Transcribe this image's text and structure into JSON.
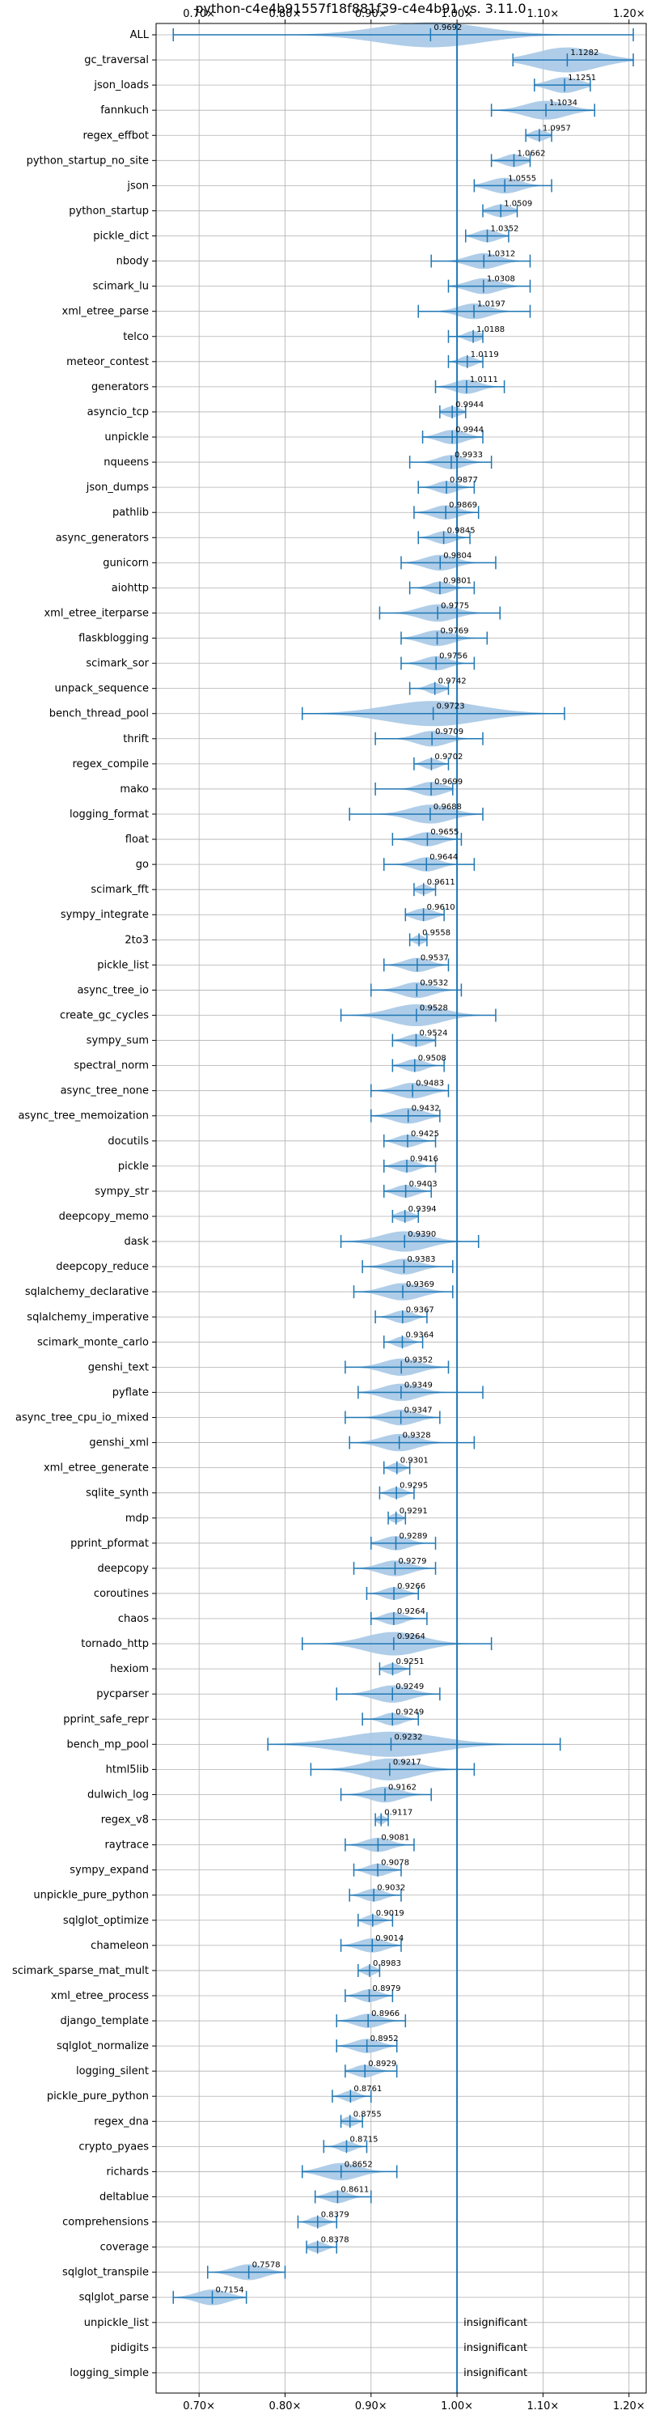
{
  "chart_data": {
    "type": "violin",
    "title": "python-c4e4b91557f18f881f39-c4e4b91 vs. 3.11.0",
    "xlabel": "",
    "ylabel": "",
    "xlim": [
      0.65,
      1.22
    ],
    "x_ticks": [
      0.7,
      0.8,
      0.9,
      1.0,
      1.1,
      1.2
    ],
    "x_tick_labels": [
      "0.70×",
      "0.80×",
      "0.90×",
      "1.00×",
      "1.10×",
      "1.20×"
    ],
    "reference_line": 1.0,
    "grid": true,
    "series_color": "#1f77b4",
    "violin_fill": "#a6c8e6",
    "insignificant_label": "insignificant",
    "benchmarks": [
      {
        "name": "ALL",
        "value": 0.9692,
        "label": "0.9692",
        "min": 0.67,
        "max": 1.205,
        "spread": 0.1
      },
      {
        "name": "gc_traversal",
        "value": 1.1282,
        "label": "1.1282",
        "min": 1.065,
        "max": 1.205,
        "spread": 0.06
      },
      {
        "name": "json_loads",
        "value": 1.1251,
        "label": "1.1251",
        "min": 1.09,
        "max": 1.155,
        "spread": 0.03
      },
      {
        "name": "fannkuch",
        "value": 1.1034,
        "label": "1.1034",
        "min": 1.04,
        "max": 1.16,
        "spread": 0.04
      },
      {
        "name": "regex_effbot",
        "value": 1.0957,
        "label": "1.0957",
        "min": 1.08,
        "max": 1.11,
        "spread": 0.015
      },
      {
        "name": "python_startup_no_site",
        "value": 1.0662,
        "label": "1.0662",
        "min": 1.04,
        "max": 1.085,
        "spread": 0.02
      },
      {
        "name": "json",
        "value": 1.0555,
        "label": "1.0555",
        "min": 1.02,
        "max": 1.11,
        "spread": 0.03
      },
      {
        "name": "python_startup",
        "value": 1.0509,
        "label": "1.0509",
        "min": 1.03,
        "max": 1.07,
        "spread": 0.02
      },
      {
        "name": "pickle_dict",
        "value": 1.0352,
        "label": "1.0352",
        "min": 1.01,
        "max": 1.06,
        "spread": 0.02
      },
      {
        "name": "nbody",
        "value": 1.0312,
        "label": "1.0312",
        "min": 0.97,
        "max": 1.085,
        "spread": 0.03
      },
      {
        "name": "scimark_lu",
        "value": 1.0308,
        "label": "1.0308",
        "min": 0.99,
        "max": 1.085,
        "spread": 0.03
      },
      {
        "name": "xml_etree_parse",
        "value": 1.0197,
        "label": "1.0197",
        "min": 0.955,
        "max": 1.085,
        "spread": 0.03
      },
      {
        "name": "telco",
        "value": 1.0188,
        "label": "1.0188",
        "min": 0.99,
        "max": 1.03,
        "spread": 0.015
      },
      {
        "name": "meteor_contest",
        "value": 1.0119,
        "label": "1.0119",
        "min": 0.99,
        "max": 1.03,
        "spread": 0.015
      },
      {
        "name": "generators",
        "value": 1.0111,
        "label": "1.0111",
        "min": 0.975,
        "max": 1.055,
        "spread": 0.025
      },
      {
        "name": "asyncio_tcp",
        "value": 0.9944,
        "label": "0.9944",
        "min": 0.98,
        "max": 1.01,
        "spread": 0.015
      },
      {
        "name": "unpickle",
        "value": 0.9944,
        "label": "0.9944",
        "min": 0.96,
        "max": 1.03,
        "spread": 0.025
      },
      {
        "name": "nqueens",
        "value": 0.9933,
        "label": "0.9933",
        "min": 0.945,
        "max": 1.04,
        "spread": 0.025
      },
      {
        "name": "json_dumps",
        "value": 0.9877,
        "label": "0.9877",
        "min": 0.955,
        "max": 1.02,
        "spread": 0.02
      },
      {
        "name": "pathlib",
        "value": 0.9869,
        "label": "0.9869",
        "min": 0.95,
        "max": 1.025,
        "spread": 0.025
      },
      {
        "name": "async_generators",
        "value": 0.9845,
        "label": "0.9845",
        "min": 0.955,
        "max": 1.015,
        "spread": 0.02
      },
      {
        "name": "gunicorn",
        "value": 0.9804,
        "label": "0.9804",
        "min": 0.935,
        "max": 1.045,
        "spread": 0.03
      },
      {
        "name": "aiohttp",
        "value": 0.9801,
        "label": "0.9801",
        "min": 0.945,
        "max": 1.02,
        "spread": 0.02
      },
      {
        "name": "xml_etree_iterparse",
        "value": 0.9775,
        "label": "0.9775",
        "min": 0.91,
        "max": 1.05,
        "spread": 0.035
      },
      {
        "name": "flaskblogging",
        "value": 0.9769,
        "label": "0.9769",
        "min": 0.935,
        "max": 1.035,
        "spread": 0.03
      },
      {
        "name": "scimark_sor",
        "value": 0.9756,
        "label": "0.9756",
        "min": 0.935,
        "max": 1.02,
        "spread": 0.025
      },
      {
        "name": "unpack_sequence",
        "value": 0.9742,
        "label": "0.9742",
        "min": 0.945,
        "max": 0.99,
        "spread": 0.015
      },
      {
        "name": "bench_thread_pool",
        "value": 0.9723,
        "label": "0.9723",
        "min": 0.82,
        "max": 1.125,
        "spread": 0.09
      },
      {
        "name": "thrift",
        "value": 0.9709,
        "label": "0.9709",
        "min": 0.905,
        "max": 1.03,
        "spread": 0.03
      },
      {
        "name": "regex_compile",
        "value": 0.9702,
        "label": "0.9702",
        "min": 0.95,
        "max": 0.99,
        "spread": 0.015
      },
      {
        "name": "mako",
        "value": 0.9699,
        "label": "0.9699",
        "min": 0.905,
        "max": 0.995,
        "spread": 0.025
      },
      {
        "name": "logging_format",
        "value": 0.9688,
        "label": "0.9688",
        "min": 0.875,
        "max": 1.03,
        "spread": 0.04
      },
      {
        "name": "float",
        "value": 0.9655,
        "label": "0.9655",
        "min": 0.925,
        "max": 1.005,
        "spread": 0.025
      },
      {
        "name": "go",
        "value": 0.9644,
        "label": "0.9644",
        "min": 0.915,
        "max": 1.02,
        "spread": 0.025
      },
      {
        "name": "scimark_fft",
        "value": 0.9611,
        "label": "0.9611",
        "min": 0.95,
        "max": 0.975,
        "spread": 0.012
      },
      {
        "name": "sympy_integrate",
        "value": 0.961,
        "label": "0.9610",
        "min": 0.94,
        "max": 0.985,
        "spread": 0.02
      },
      {
        "name": "2to3",
        "value": 0.9558,
        "label": "0.9558",
        "min": 0.945,
        "max": 0.965,
        "spread": 0.01
      },
      {
        "name": "pickle_list",
        "value": 0.9537,
        "label": "0.9537",
        "min": 0.915,
        "max": 0.99,
        "spread": 0.025
      },
      {
        "name": "async_tree_io",
        "value": 0.9532,
        "label": "0.9532",
        "min": 0.9,
        "max": 1.005,
        "spread": 0.03
      },
      {
        "name": "create_gc_cycles",
        "value": 0.9528,
        "label": "0.9528",
        "min": 0.865,
        "max": 1.045,
        "spread": 0.05
      },
      {
        "name": "sympy_sum",
        "value": 0.9524,
        "label": "0.9524",
        "min": 0.925,
        "max": 0.975,
        "spread": 0.02
      },
      {
        "name": "spectral_norm",
        "value": 0.9508,
        "label": "0.9508",
        "min": 0.925,
        "max": 0.985,
        "spread": 0.02
      },
      {
        "name": "async_tree_none",
        "value": 0.9483,
        "label": "0.9483",
        "min": 0.9,
        "max": 0.99,
        "spread": 0.03
      },
      {
        "name": "async_tree_memoization",
        "value": 0.9432,
        "label": "0.9432",
        "min": 0.9,
        "max": 0.98,
        "spread": 0.03
      },
      {
        "name": "docutils",
        "value": 0.9425,
        "label": "0.9425",
        "min": 0.915,
        "max": 0.975,
        "spread": 0.02
      },
      {
        "name": "pickle",
        "value": 0.9416,
        "label": "0.9416",
        "min": 0.915,
        "max": 0.975,
        "spread": 0.02
      },
      {
        "name": "sympy_str",
        "value": 0.9403,
        "label": "0.9403",
        "min": 0.915,
        "max": 0.97,
        "spread": 0.02
      },
      {
        "name": "deepcopy_memo",
        "value": 0.9394,
        "label": "0.9394",
        "min": 0.925,
        "max": 0.955,
        "spread": 0.015
      },
      {
        "name": "dask",
        "value": 0.939,
        "label": "0.9390",
        "min": 0.865,
        "max": 1.025,
        "spread": 0.045
      },
      {
        "name": "deepcopy_reduce",
        "value": 0.9383,
        "label": "0.9383",
        "min": 0.89,
        "max": 0.995,
        "spread": 0.03
      },
      {
        "name": "sqlalchemy_declarative",
        "value": 0.9369,
        "label": "0.9369",
        "min": 0.88,
        "max": 0.995,
        "spread": 0.035
      },
      {
        "name": "sqlalchemy_imperative",
        "value": 0.9367,
        "label": "0.9367",
        "min": 0.905,
        "max": 0.965,
        "spread": 0.02
      },
      {
        "name": "scimark_monte_carlo",
        "value": 0.9364,
        "label": "0.9364",
        "min": 0.915,
        "max": 0.96,
        "spread": 0.015
      },
      {
        "name": "genshi_text",
        "value": 0.9352,
        "label": "0.9352",
        "min": 0.87,
        "max": 0.99,
        "spread": 0.035
      },
      {
        "name": "pyflate",
        "value": 0.9349,
        "label": "0.9349",
        "min": 0.885,
        "max": 1.03,
        "spread": 0.035
      },
      {
        "name": "async_tree_cpu_io_mixed",
        "value": 0.9347,
        "label": "0.9347",
        "min": 0.87,
        "max": 0.98,
        "spread": 0.03
      },
      {
        "name": "genshi_xml",
        "value": 0.9328,
        "label": "0.9328",
        "min": 0.875,
        "max": 1.02,
        "spread": 0.035
      },
      {
        "name": "xml_etree_generate",
        "value": 0.9301,
        "label": "0.9301",
        "min": 0.915,
        "max": 0.945,
        "spread": 0.012
      },
      {
        "name": "sqlite_synth",
        "value": 0.9295,
        "label": "0.9295",
        "min": 0.91,
        "max": 0.95,
        "spread": 0.015
      },
      {
        "name": "mdp",
        "value": 0.9291,
        "label": "0.9291",
        "min": 0.92,
        "max": 0.94,
        "spread": 0.01
      },
      {
        "name": "pprint_pformat",
        "value": 0.9289,
        "label": "0.9289",
        "min": 0.9,
        "max": 0.975,
        "spread": 0.025
      },
      {
        "name": "deepcopy",
        "value": 0.9279,
        "label": "0.9279",
        "min": 0.88,
        "max": 0.975,
        "spread": 0.03
      },
      {
        "name": "coroutines",
        "value": 0.9266,
        "label": "0.9266",
        "min": 0.895,
        "max": 0.955,
        "spread": 0.02
      },
      {
        "name": "chaos",
        "value": 0.9264,
        "label": "0.9264",
        "min": 0.9,
        "max": 0.965,
        "spread": 0.02
      },
      {
        "name": "tornado_http",
        "value": 0.9264,
        "label": "0.9264",
        "min": 0.82,
        "max": 1.04,
        "spread": 0.055
      },
      {
        "name": "hexiom",
        "value": 0.9251,
        "label": "0.9251",
        "min": 0.91,
        "max": 0.945,
        "spread": 0.015
      },
      {
        "name": "pycparser",
        "value": 0.9249,
        "label": "0.9249",
        "min": 0.86,
        "max": 0.98,
        "spread": 0.035
      },
      {
        "name": "pprint_safe_repr",
        "value": 0.9249,
        "label": "0.9249",
        "min": 0.89,
        "max": 0.955,
        "spread": 0.02
      },
      {
        "name": "bench_mp_pool",
        "value": 0.9232,
        "label": "0.9232",
        "min": 0.78,
        "max": 1.12,
        "spread": 0.09
      },
      {
        "name": "html5lib",
        "value": 0.9217,
        "label": "0.9217",
        "min": 0.83,
        "max": 1.02,
        "spread": 0.05
      },
      {
        "name": "dulwich_log",
        "value": 0.9162,
        "label": "0.9162",
        "min": 0.865,
        "max": 0.97,
        "spread": 0.03
      },
      {
        "name": "regex_v8",
        "value": 0.9117,
        "label": "0.9117",
        "min": 0.905,
        "max": 0.92,
        "spread": 0.008
      },
      {
        "name": "raytrace",
        "value": 0.9081,
        "label": "0.9081",
        "min": 0.87,
        "max": 0.95,
        "spread": 0.025
      },
      {
        "name": "sympy_expand",
        "value": 0.9078,
        "label": "0.9078",
        "min": 0.88,
        "max": 0.935,
        "spread": 0.02
      },
      {
        "name": "unpickle_pure_python",
        "value": 0.9032,
        "label": "0.9032",
        "min": 0.875,
        "max": 0.935,
        "spread": 0.02
      },
      {
        "name": "sqlglot_optimize",
        "value": 0.9019,
        "label": "0.9019",
        "min": 0.885,
        "max": 0.925,
        "spread": 0.015
      },
      {
        "name": "chameleon",
        "value": 0.9014,
        "label": "0.9014",
        "min": 0.865,
        "max": 0.935,
        "spread": 0.025
      },
      {
        "name": "scimark_sparse_mat_mult",
        "value": 0.8983,
        "label": "0.8983",
        "min": 0.885,
        "max": 0.91,
        "spread": 0.012
      },
      {
        "name": "xml_etree_process",
        "value": 0.8979,
        "label": "0.8979",
        "min": 0.87,
        "max": 0.925,
        "spread": 0.02
      },
      {
        "name": "django_template",
        "value": 0.8966,
        "label": "0.8966",
        "min": 0.86,
        "max": 0.94,
        "spread": 0.025
      },
      {
        "name": "sqlglot_normalize",
        "value": 0.8952,
        "label": "0.8952",
        "min": 0.86,
        "max": 0.93,
        "spread": 0.025
      },
      {
        "name": "logging_silent",
        "value": 0.8929,
        "label": "0.8929",
        "min": 0.87,
        "max": 0.93,
        "spread": 0.02
      },
      {
        "name": "pickle_pure_python",
        "value": 0.8761,
        "label": "0.8761",
        "min": 0.855,
        "max": 0.9,
        "spread": 0.015
      },
      {
        "name": "regex_dna",
        "value": 0.8755,
        "label": "0.8755",
        "min": 0.865,
        "max": 0.89,
        "spread": 0.012
      },
      {
        "name": "crypto_pyaes",
        "value": 0.8715,
        "label": "0.8715",
        "min": 0.845,
        "max": 0.895,
        "spread": 0.015
      },
      {
        "name": "richards",
        "value": 0.8652,
        "label": "0.8652",
        "min": 0.82,
        "max": 0.93,
        "spread": 0.035
      },
      {
        "name": "deltablue",
        "value": 0.8611,
        "label": "0.8611",
        "min": 0.835,
        "max": 0.9,
        "spread": 0.02
      },
      {
        "name": "comprehensions",
        "value": 0.8379,
        "label": "0.8379",
        "min": 0.815,
        "max": 0.86,
        "spread": 0.015
      },
      {
        "name": "coverage",
        "value": 0.8378,
        "label": "0.8378",
        "min": 0.825,
        "max": 0.86,
        "spread": 0.015
      },
      {
        "name": "sqlglot_transpile",
        "value": 0.7578,
        "label": "0.7578",
        "min": 0.71,
        "max": 0.8,
        "spread": 0.03
      },
      {
        "name": "sqlglot_parse",
        "value": 0.7154,
        "label": "0.7154",
        "min": 0.67,
        "max": 0.755,
        "spread": 0.03
      },
      {
        "name": "unpickle_list",
        "value": null,
        "label": "",
        "insignificant": true
      },
      {
        "name": "pidigits",
        "value": null,
        "label": "",
        "insignificant": true
      },
      {
        "name": "logging_simple",
        "value": null,
        "label": "",
        "insignificant": true
      }
    ]
  }
}
